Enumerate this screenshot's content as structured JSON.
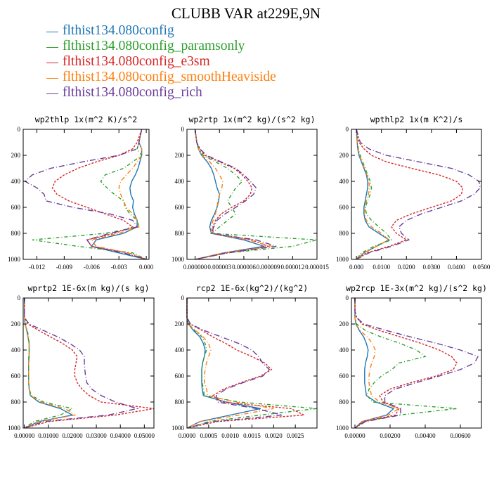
{
  "title": "CLUBB VAR at229E,9N",
  "legend": [
    {
      "name": "flthist134.080config",
      "color": "#1f77b4"
    },
    {
      "name": "flthist134.080config_paramsonly",
      "color": "#2ca02c"
    },
    {
      "name": "flthist134.080config_e3sm",
      "color": "#d62728"
    },
    {
      "name": "flthist134.080config_smoothHeaviside",
      "color": "#ff7f0e"
    },
    {
      "name": "flthist134.080config_rich",
      "color": "#6a3d9a"
    }
  ],
  "chart_data": [
    {
      "type": "line",
      "title": "wp2thlp   1x(m^2 K)/s^2",
      "xlim": [
        -0.0135,
        0.0003
      ],
      "ylim": [
        1000,
        0
      ],
      "xticks": [
        -0.012,
        -0.009,
        -0.006,
        -0.003,
        0.0
      ],
      "xtick_labels": [
        "-0.012",
        "-0.009",
        "-0.006",
        "-0.003",
        "0.000"
      ],
      "yticks": [
        0,
        200,
        400,
        600,
        800,
        1000
      ],
      "ytick_labels": [
        "0",
        "200",
        "400",
        "600",
        "800",
        "1000"
      ],
      "y": [
        0,
        100,
        150,
        200,
        250,
        300,
        350,
        400,
        450,
        500,
        550,
        600,
        650,
        700,
        750,
        800,
        850,
        900,
        950,
        1000
      ],
      "series": [
        {
          "values": [
            -0.0005,
            -0.0008,
            -0.0005,
            -0.0005,
            -0.0007,
            -0.0009,
            -0.0012,
            -0.0016,
            -0.0018,
            -0.0017,
            -0.0014,
            -0.0015,
            -0.0013,
            -0.001,
            -0.001,
            -0.0025,
            -0.0055,
            -0.006,
            -0.003,
            0.0
          ]
        },
        {
          "values": [
            -0.0005,
            -0.0008,
            -0.001,
            -0.0005,
            -0.0015,
            -0.0025,
            -0.0045,
            -0.005,
            -0.0043,
            -0.0035,
            -0.0025,
            -0.0023,
            -0.0018,
            -0.001,
            -0.0008,
            -0.0045,
            -0.0125,
            -0.0075,
            -0.0015,
            0.0
          ]
        },
        {
          "values": [
            -0.0005,
            -0.001,
            -0.0015,
            -0.003,
            -0.0055,
            -0.0075,
            -0.009,
            -0.01,
            -0.0103,
            -0.0098,
            -0.0085,
            -0.0065,
            -0.0045,
            -0.0025,
            -0.0015,
            -0.0035,
            -0.0065,
            -0.006,
            -0.002,
            0.0
          ]
        },
        {
          "values": [
            -0.0005,
            -0.0008,
            -0.0005,
            -0.0005,
            -0.001,
            -0.0015,
            -0.0022,
            -0.0028,
            -0.003,
            -0.0028,
            -0.0025,
            -0.0022,
            -0.0015,
            -0.001,
            -0.0008,
            -0.003,
            -0.006,
            -0.0055,
            -0.002,
            0.0
          ]
        },
        {
          "values": [
            -0.0005,
            -0.0008,
            -0.001,
            -0.003,
            -0.007,
            -0.0105,
            -0.0125,
            -0.0133,
            -0.012,
            -0.0112,
            -0.011,
            -0.008,
            -0.004,
            -0.0015,
            -0.001,
            -0.004,
            -0.0065,
            -0.006,
            -0.0025,
            0.0
          ]
        }
      ]
    },
    {
      "type": "line",
      "title": "wp2rtp   1x(m^2 kg)/(s^2 kg)",
      "xlim": [
        -1e-06,
        1.5e-05
      ],
      "ylim": [
        1000,
        0
      ],
      "xticks": [
        0,
        3e-06,
        6e-06,
        9e-06,
        1.2e-05,
        1.5e-05
      ],
      "xtick_labels": [
        "0.000000",
        "0.000003",
        "0.000006",
        "0.000009",
        "0.000012",
        "0.000015"
      ],
      "yticks": [
        0,
        200,
        400,
        600,
        800,
        1000
      ],
      "ytick_labels": [
        "0",
        "200",
        "400",
        "600",
        "800",
        "1000"
      ],
      "y": [
        0,
        100,
        150,
        200,
        250,
        300,
        350,
        400,
        450,
        500,
        550,
        600,
        650,
        700,
        750,
        800,
        850,
        900,
        950,
        1000
      ],
      "series": [
        {
          "values": [
            0,
            2e-07,
            4e-07,
            8e-07,
            1.5e-06,
            2e-06,
            2.3e-06,
            2.5e-06,
            2.7e-06,
            3e-06,
            2.9e-06,
            2.7e-06,
            2.4e-06,
            2e-06,
            1.8e-06,
            2e-06,
            6e-06,
            8.5e-06,
            3.5e-06,
            0
          ]
        },
        {
          "values": [
            0,
            2e-07,
            5e-07,
            1e-06,
            2.5e-06,
            4e-06,
            5e-06,
            5.8e-06,
            5e-06,
            4.5e-06,
            4e-06,
            4.5e-06,
            5e-06,
            4e-06,
            3e-06,
            2e-06,
            1.5e-05,
            1.2e-05,
            4e-06,
            0
          ]
        },
        {
          "values": [
            0,
            2e-07,
            6e-07,
            1.2e-06,
            3e-06,
            4.8e-06,
            5.8e-06,
            6.5e-06,
            7e-06,
            6.8e-06,
            6e-06,
            4.5e-06,
            3.2e-06,
            2.5e-06,
            2.2e-06,
            2.2e-06,
            7e-06,
            9e-06,
            4e-06,
            0
          ]
        },
        {
          "values": [
            0,
            2e-07,
            4e-07,
            8e-07,
            1.8e-06,
            2.5e-06,
            3e-06,
            3.4e-06,
            3.3e-06,
            3e-06,
            2.8e-06,
            2.7e-06,
            2.5e-06,
            2.2e-06,
            2e-06,
            2e-06,
            6.5e-06,
            9.5e-06,
            3.5e-06,
            0
          ]
        },
        {
          "values": [
            0,
            2e-07,
            6e-07,
            1.4e-06,
            3.2e-06,
            5e-06,
            6e-06,
            6.8e-06,
            7.5e-06,
            7.2e-06,
            6.2e-06,
            5e-06,
            3.7e-06,
            2.7e-06,
            2.3e-06,
            2e-06,
            7.5e-06,
            1e-05,
            4e-06,
            0
          ]
        }
      ]
    },
    {
      "type": "line",
      "title": "wpthlp2   1x(m K^2)/s",
      "xlim": [
        -0.002,
        0.05
      ],
      "ylim": [
        1000,
        0
      ],
      "xticks": [
        0,
        0.01,
        0.02,
        0.03,
        0.04,
        0.05
      ],
      "xtick_labels": [
        "0.000",
        "0.0100",
        "0.0200",
        "0.0300",
        "0.0400",
        "0.0500"
      ],
      "yticks": [
        0,
        200,
        400,
        600,
        800,
        1000
      ],
      "ytick_labels": [
        "0",
        "200",
        "400",
        "600",
        "800",
        "1000"
      ],
      "y": [
        0,
        100,
        150,
        200,
        250,
        300,
        350,
        400,
        450,
        500,
        550,
        600,
        650,
        700,
        750,
        800,
        850,
        900,
        950,
        1000
      ],
      "series": [
        {
          "values": [
            0,
            0.0003,
            0.0005,
            0.001,
            0.002,
            0.003,
            0.004,
            0.0045,
            0.0045,
            0.004,
            0.0035,
            0.003,
            0.003,
            0.0035,
            0.005,
            0.009,
            0.013,
            0.008,
            0.003,
            0
          ]
        },
        {
          "values": [
            0,
            0.0003,
            0.0008,
            0.0015,
            0.0025,
            0.0035,
            0.0045,
            0.0055,
            0.006,
            0.0055,
            0.0045,
            0.0035,
            0.004,
            0.006,
            0.009,
            0.012,
            0.014,
            0.007,
            0.002,
            0
          ]
        },
        {
          "values": [
            0,
            0.001,
            0.003,
            0.006,
            0.012,
            0.022,
            0.033,
            0.04,
            0.0425,
            0.042,
            0.038,
            0.03,
            0.022,
            0.016,
            0.014,
            0.016,
            0.02,
            0.013,
            0.004,
            0
          ]
        },
        {
          "values": [
            0,
            0.0003,
            0.0006,
            0.0012,
            0.0022,
            0.0032,
            0.0042,
            0.005,
            0.0052,
            0.0048,
            0.004,
            0.0034,
            0.0032,
            0.004,
            0.006,
            0.01,
            0.013,
            0.008,
            0.003,
            0
          ]
        },
        {
          "values": [
            0,
            0.0015,
            0.005,
            0.012,
            0.025,
            0.038,
            0.045,
            0.049,
            0.0495,
            0.047,
            0.042,
            0.034,
            0.026,
            0.02,
            0.017,
            0.018,
            0.021,
            0.014,
            0.005,
            0
          ]
        }
      ]
    },
    {
      "type": "line",
      "title": "wprtp2   1E-6x(m kg)/(s kg)",
      "xlim": [
        -0.0005,
        0.054
      ],
      "ylim": [
        1000,
        0
      ],
      "xticks": [
        0,
        0.01,
        0.02,
        0.03,
        0.04,
        0.05
      ],
      "xtick_labels": [
        "0.00000",
        "0.01000",
        "0.02000",
        "0.03000",
        "0.04000",
        "0.05000"
      ],
      "yticks": [
        0,
        200,
        400,
        600,
        800,
        1000
      ],
      "ytick_labels": [
        "0",
        "200",
        "400",
        "600",
        "800",
        "1000"
      ],
      "y": [
        0,
        100,
        150,
        200,
        250,
        300,
        350,
        400,
        450,
        500,
        550,
        600,
        650,
        700,
        750,
        800,
        850,
        900,
        950,
        1000
      ],
      "series": [
        {
          "values": [
            0,
            0,
            0,
            0.0003,
            0.001,
            0.0015,
            0.002,
            0.002,
            0.002,
            0.0018,
            0.0018,
            0.0018,
            0.0018,
            0.002,
            0.0025,
            0.006,
            0.015,
            0.02,
            0.006,
            0
          ]
        },
        {
          "values": [
            0,
            0,
            0,
            0.0003,
            0.0012,
            0.0018,
            0.002,
            0.002,
            0.0018,
            0.0018,
            0.0018,
            0.0018,
            0.0018,
            0.002,
            0.003,
            0.008,
            0.02,
            0.015,
            0.004,
            0
          ]
        },
        {
          "values": [
            0,
            0,
            0,
            0.0015,
            0.006,
            0.011,
            0.016,
            0.02,
            0.022,
            0.0215,
            0.021,
            0.021,
            0.022,
            0.024,
            0.027,
            0.032,
            0.054,
            0.038,
            0.01,
            0
          ]
        },
        {
          "values": [
            0,
            0,
            0,
            0.0003,
            0.001,
            0.0015,
            0.002,
            0.002,
            0.002,
            0.0018,
            0.0018,
            0.0018,
            0.0018,
            0.002,
            0.0025,
            0.007,
            0.017,
            0.021,
            0.006,
            0
          ]
        },
        {
          "values": [
            0,
            0,
            0,
            0.002,
            0.008,
            0.014,
            0.019,
            0.023,
            0.025,
            0.025,
            0.0252,
            0.0255,
            0.026,
            0.028,
            0.032,
            0.038,
            0.047,
            0.035,
            0.008,
            0
          ]
        }
      ]
    },
    {
      "type": "line",
      "title": "rcp2   1E-6x(kg^2)/(kg^2)",
      "xlim": [
        0,
        0.003
      ],
      "ylim": [
        1000,
        0
      ],
      "xticks": [
        0,
        0.0005,
        0.001,
        0.0015,
        0.002,
        0.0025
      ],
      "xtick_labels": [
        "0.0000",
        "0.0005",
        "0.0010",
        "0.0015",
        "0.0020",
        "0.0025"
      ],
      "yticks": [
        0,
        200,
        400,
        600,
        800,
        1000
      ],
      "ytick_labels": [
        "0",
        "200",
        "400",
        "600",
        "800",
        "1000"
      ],
      "y": [
        0,
        100,
        150,
        200,
        250,
        300,
        350,
        400,
        450,
        500,
        550,
        600,
        650,
        700,
        750,
        800,
        850,
        900,
        950,
        1000
      ],
      "series": [
        {
          "values": [
            0,
            0,
            0,
            3e-05,
            0.00015,
            0.0003,
            0.00038,
            0.00042,
            0.0004,
            0.00036,
            0.00034,
            0.00034,
            0.00034,
            0.00035,
            0.00038,
            0.0009,
            0.0017,
            0.001,
            0.0003,
            0
          ]
        },
        {
          "values": [
            0,
            0,
            0,
            3e-05,
            0.00018,
            0.00035,
            0.00042,
            0.00045,
            0.0004,
            0.00036,
            0.00034,
            0.00034,
            0.00035,
            0.00038,
            0.0004,
            0.0012,
            0.003,
            0.0017,
            0.0005,
            0
          ]
        },
        {
          "values": [
            0,
            0,
            0,
            8e-05,
            0.00035,
            0.0006,
            0.0009,
            0.00115,
            0.0015,
            0.0018,
            0.00195,
            0.0017,
            0.00125,
            0.00085,
            0.0006,
            0.0008,
            0.0024,
            0.0027,
            0.0007,
            0
          ]
        },
        {
          "values": [
            0,
            0,
            0,
            3e-05,
            0.0002,
            0.00038,
            0.0005,
            0.00055,
            0.0005,
            0.00045,
            0.00042,
            0.0004,
            0.0004,
            0.00045,
            0.00048,
            0.0011,
            0.002,
            0.0012,
            0.0003,
            0
          ]
        },
        {
          "values": [
            0,
            0,
            0,
            8e-05,
            0.0004,
            0.0008,
            0.0012,
            0.0015,
            0.00165,
            0.00175,
            0.0019,
            0.00175,
            0.0013,
            0.0009,
            0.00068,
            0.0007,
            0.0016,
            0.0022,
            0.0006,
            0
          ]
        }
      ]
    },
    {
      "type": "line",
      "title": "wp2rcp   1E-3x(m^2 kg)/(s^2 kg)",
      "xlim": [
        -0.0002,
        0.0072
      ],
      "ylim": [
        1000,
        0
      ],
      "xticks": [
        0,
        0.002,
        0.004,
        0.006
      ],
      "xtick_labels": [
        "0.00000",
        "0.00200",
        "0.00400",
        "0.00600"
      ],
      "yticks": [
        0,
        200,
        400,
        600,
        800,
        1000
      ],
      "ytick_labels": [
        "0",
        "200",
        "400",
        "600",
        "800",
        "1000"
      ],
      "y": [
        0,
        100,
        150,
        200,
        250,
        300,
        350,
        400,
        450,
        500,
        550,
        600,
        650,
        700,
        750,
        800,
        850,
        900,
        950,
        1000
      ],
      "series": [
        {
          "values": [
            0,
            0,
            0,
            5e-05,
            0.00025,
            0.0005,
            0.00065,
            0.00075,
            0.0007,
            0.0006,
            0.00055,
            0.00055,
            0.00055,
            0.0006,
            0.00065,
            0.0012,
            0.0022,
            0.0018,
            0.0004,
            0
          ]
        },
        {
          "values": [
            0,
            0,
            0,
            0.0001,
            0.0006,
            0.0015,
            0.0026,
            0.0035,
            0.004,
            0.0025,
            0.0021,
            0.0015,
            0.0011,
            0.0008,
            0.0007,
            0.001,
            0.0058,
            0.0025,
            0.0005,
            0
          ]
        },
        {
          "values": [
            0,
            0,
            0.0001,
            0.0004,
            0.0014,
            0.0026,
            0.0038,
            0.0048,
            0.0055,
            0.0058,
            0.0056,
            0.0046,
            0.0032,
            0.002,
            0.0014,
            0.0016,
            0.0025,
            0.0023,
            0.0005,
            0
          ]
        },
        {
          "values": [
            0,
            0,
            0,
            5e-05,
            0.0003,
            0.0007,
            0.001,
            0.00115,
            0.0011,
            0.00095,
            0.00085,
            0.0008,
            0.0008,
            0.00085,
            0.00095,
            0.0014,
            0.0025,
            0.0019,
            0.0004,
            0
          ]
        },
        {
          "values": [
            0,
            0,
            0.0001,
            0.0005,
            0.0018,
            0.0032,
            0.0047,
            0.006,
            0.007,
            0.0068,
            0.006,
            0.0048,
            0.0035,
            0.0023,
            0.0017,
            0.0017,
            0.0026,
            0.0026,
            0.0006,
            0
          ]
        }
      ]
    }
  ]
}
